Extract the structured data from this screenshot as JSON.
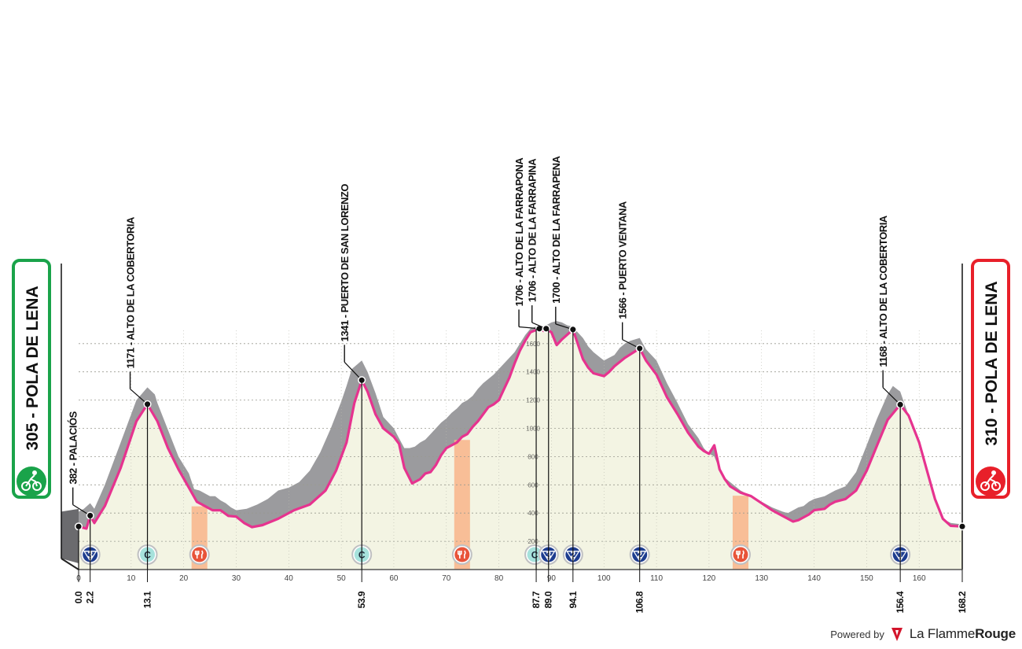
{
  "start_label": "305 - POLA DE LENA",
  "finish_label": "310 - POLA DE LENA",
  "colors": {
    "start": "#1aa34a",
    "finish": "#e8202a",
    "profile_line": "#e6338f",
    "profile_fill": "#f3f4e3",
    "relief": "#9b9b9e",
    "feed": "#f8b48a",
    "marker_border": "#bfc0c2",
    "dark_marker": "#1e3d8f",
    "teal_marker": "#a6e2dc",
    "feed_marker": "#e8543a"
  },
  "footer": {
    "powered": "Powered by",
    "brand_regular": "La Flamme",
    "brand_bold": "Rouge",
    "logo_icon": "flame-logo-icon"
  },
  "chart_data": {
    "type": "area",
    "xlabel": "",
    "ylabel": "",
    "xlim": [
      0,
      168.2
    ],
    "ylim": [
      0,
      1800
    ],
    "x_ticks": [
      0,
      10,
      20,
      30,
      40,
      50,
      60,
      70,
      80,
      90,
      100,
      110,
      120,
      130,
      140,
      150,
      160
    ],
    "y_ticks": [
      200,
      400,
      600,
      800,
      1000,
      1200,
      1400,
      1600
    ],
    "y_tick_labels_from_km": 86.5,
    "profile": [
      [
        0,
        305
      ],
      [
        1.5,
        290
      ],
      [
        2.2,
        382
      ],
      [
        3,
        330
      ],
      [
        5,
        450
      ],
      [
        8,
        720
      ],
      [
        11,
        1050
      ],
      [
        13.1,
        1171
      ],
      [
        15,
        1050
      ],
      [
        17,
        860
      ],
      [
        19,
        710
      ],
      [
        21,
        580
      ],
      [
        22.5,
        480
      ],
      [
        24,
        450
      ],
      [
        25.5,
        420
      ],
      [
        27,
        420
      ],
      [
        28.5,
        380
      ],
      [
        30,
        375
      ],
      [
        31.5,
        330
      ],
      [
        33,
        300
      ],
      [
        35,
        315
      ],
      [
        38,
        360
      ],
      [
        41,
        420
      ],
      [
        44,
        460
      ],
      [
        47,
        560
      ],
      [
        49,
        700
      ],
      [
        51,
        900
      ],
      [
        52.5,
        1180
      ],
      [
        53.9,
        1341
      ],
      [
        55,
        1260
      ],
      [
        56.5,
        1100
      ],
      [
        58,
        1000
      ],
      [
        60,
        940
      ],
      [
        61,
        890
      ],
      [
        62,
        720
      ],
      [
        63.5,
        610
      ],
      [
        65,
        640
      ],
      [
        66,
        680
      ],
      [
        67,
        690
      ],
      [
        68,
        740
      ],
      [
        69,
        810
      ],
      [
        70,
        860
      ],
      [
        71,
        880
      ],
      [
        72,
        900
      ],
      [
        73,
        940
      ],
      [
        74,
        960
      ],
      [
        75,
        1010
      ],
      [
        76,
        1050
      ],
      [
        77,
        1100
      ],
      [
        78,
        1150
      ],
      [
        79,
        1170
      ],
      [
        80,
        1200
      ],
      [
        81,
        1280
      ],
      [
        82,
        1360
      ],
      [
        83,
        1460
      ],
      [
        84,
        1550
      ],
      [
        85,
        1620
      ],
      [
        86,
        1680
      ],
      [
        87.7,
        1706
      ],
      [
        88.5,
        1690
      ],
      [
        89,
        1706
      ],
      [
        90,
        1680
      ],
      [
        91,
        1590
      ],
      [
        92,
        1630
      ],
      [
        94.1,
        1700
      ],
      [
        95,
        1600
      ],
      [
        96,
        1490
      ],
      [
        97,
        1430
      ],
      [
        98,
        1390
      ],
      [
        99,
        1380
      ],
      [
        100,
        1370
      ],
      [
        101,
        1400
      ],
      [
        102,
        1440
      ],
      [
        103,
        1470
      ],
      [
        104,
        1500
      ],
      [
        106.8,
        1566
      ],
      [
        108,
        1480
      ],
      [
        110,
        1380
      ],
      [
        112,
        1220
      ],
      [
        114,
        1100
      ],
      [
        116,
        970
      ],
      [
        118,
        870
      ],
      [
        119,
        840
      ],
      [
        120,
        820
      ],
      [
        121,
        880
      ],
      [
        122,
        710
      ],
      [
        123,
        640
      ],
      [
        124,
        590
      ],
      [
        126,
        545
      ],
      [
        128,
        520
      ],
      [
        130,
        470
      ],
      [
        132,
        420
      ],
      [
        134,
        380
      ],
      [
        135,
        360
      ],
      [
        136,
        340
      ],
      [
        137,
        350
      ],
      [
        138,
        370
      ],
      [
        139,
        390
      ],
      [
        140,
        420
      ],
      [
        142,
        430
      ],
      [
        143,
        460
      ],
      [
        144,
        480
      ],
      [
        146,
        500
      ],
      [
        148,
        560
      ],
      [
        150,
        700
      ],
      [
        152,
        880
      ],
      [
        154,
        1060
      ],
      [
        156.4,
        1168
      ],
      [
        158,
        1090
      ],
      [
        160,
        900
      ],
      [
        161.5,
        700
      ],
      [
        163,
        500
      ],
      [
        164.5,
        360
      ],
      [
        166,
        310
      ],
      [
        168.2,
        305
      ]
    ],
    "relief": [
      [
        0,
        410
      ],
      [
        1,
        430
      ],
      [
        2.2,
        470
      ],
      [
        3,
        430
      ],
      [
        5,
        600
      ],
      [
        8,
        900
      ],
      [
        11,
        1200
      ],
      [
        13.1,
        1290
      ],
      [
        14.5,
        1240
      ],
      [
        15,
        1180
      ],
      [
        17,
        990
      ],
      [
        19,
        800
      ],
      [
        21,
        680
      ],
      [
        22,
        570
      ],
      [
        23,
        560
      ],
      [
        24,
        540
      ],
      [
        25,
        520
      ],
      [
        26,
        520
      ],
      [
        27,
        490
      ],
      [
        28,
        470
      ],
      [
        29,
        440
      ],
      [
        30,
        420
      ],
      [
        32,
        430
      ],
      [
        34,
        460
      ],
      [
        36,
        500
      ],
      [
        38,
        560
      ],
      [
        40,
        580
      ],
      [
        42,
        620
      ],
      [
        44,
        700
      ],
      [
        46,
        830
      ],
      [
        48,
        1000
      ],
      [
        50,
        1190
      ],
      [
        51,
        1300
      ],
      [
        52,
        1420
      ],
      [
        53.9,
        1480
      ],
      [
        55,
        1400
      ],
      [
        56.5,
        1250
      ],
      [
        58,
        1080
      ],
      [
        60,
        1000
      ],
      [
        61,
        930
      ],
      [
        62,
        860
      ],
      [
        63,
        860
      ],
      [
        64,
        870
      ],
      [
        65,
        900
      ],
      [
        66,
        920
      ],
      [
        67,
        960
      ],
      [
        68,
        1000
      ],
      [
        69,
        1040
      ],
      [
        70,
        1070
      ],
      [
        71,
        1110
      ],
      [
        72,
        1140
      ],
      [
        73,
        1180
      ],
      [
        74,
        1200
      ],
      [
        75,
        1230
      ],
      [
        76,
        1280
      ],
      [
        77,
        1320
      ],
      [
        78,
        1350
      ],
      [
        79,
        1380
      ],
      [
        80,
        1420
      ],
      [
        81,
        1460
      ],
      [
        82,
        1500
      ],
      [
        83,
        1540
      ],
      [
        84,
        1600
      ],
      [
        85,
        1660
      ],
      [
        86,
        1706
      ],
      [
        87.7,
        1730
      ],
      [
        88.5,
        1720
      ],
      [
        89,
        1730
      ],
      [
        90,
        1750
      ],
      [
        91,
        1760
      ],
      [
        92,
        1750
      ],
      [
        93,
        1730
      ],
      [
        94.1,
        1720
      ],
      [
        95,
        1680
      ],
      [
        96,
        1640
      ],
      [
        97,
        1580
      ],
      [
        98,
        1540
      ],
      [
        99,
        1510
      ],
      [
        100,
        1480
      ],
      [
        101,
        1500
      ],
      [
        102,
        1520
      ],
      [
        103,
        1570
      ],
      [
        104,
        1600
      ],
      [
        105,
        1620
      ],
      [
        106.8,
        1640
      ],
      [
        108,
        1560
      ],
      [
        110,
        1480
      ],
      [
        112,
        1320
      ],
      [
        114,
        1180
      ],
      [
        116,
        1030
      ],
      [
        118,
        930
      ],
      [
        119,
        860
      ],
      [
        120,
        820
      ],
      [
        121,
        800
      ],
      [
        122,
        710
      ],
      [
        123,
        650
      ],
      [
        124,
        620
      ],
      [
        126,
        560
      ],
      [
        128,
        520
      ],
      [
        130,
        480
      ],
      [
        132,
        440
      ],
      [
        134,
        410
      ],
      [
        135,
        400
      ],
      [
        136,
        420
      ],
      [
        137,
        440
      ],
      [
        138,
        450
      ],
      [
        139,
        480
      ],
      [
        140,
        500
      ],
      [
        142,
        520
      ],
      [
        143,
        540
      ],
      [
        144,
        560
      ],
      [
        146,
        590
      ],
      [
        148,
        690
      ],
      [
        150,
        880
      ],
      [
        152,
        1070
      ],
      [
        154,
        1240
      ],
      [
        155,
        1300
      ],
      [
        156.4,
        1260
      ],
      [
        158,
        1090
      ],
      [
        160,
        900
      ],
      [
        161.5,
        700
      ],
      [
        163,
        500
      ],
      [
        164.5,
        360
      ],
      [
        166,
        330
      ],
      [
        168.2,
        320
      ]
    ],
    "feed_zones": [
      [
        21.5,
        24.5
      ],
      [
        71.5,
        74.5
      ],
      [
        124.5,
        127.5
      ]
    ],
    "climbs": [
      {
        "km": 2.2,
        "alt": 382,
        "label": "382 - PALACIÓS"
      },
      {
        "km": 13.1,
        "alt": 1171,
        "label": "1171 - ALTO DE LA COBERTORIA"
      },
      {
        "km": 53.9,
        "alt": 1341,
        "label": "1341 - PUERTO DE SAN LORENZO"
      },
      {
        "km": 87.7,
        "alt": 1706,
        "label": "1706 - ALTO DE LA FARRAPONA"
      },
      {
        "km": 89.0,
        "alt": 1706,
        "label": "1706 - ALTO DE LA FARRAPINA"
      },
      {
        "km": 94.1,
        "alt": 1700,
        "label": "1700 - ALTO DE LA FARRAPENA"
      },
      {
        "km": 106.8,
        "alt": 1566,
        "label": "1566 - PUERTO VENTANA"
      },
      {
        "km": 156.4,
        "alt": 1168,
        "label": "1168 - ALTO DE LA COBERTORIA"
      }
    ],
    "km_labels": [
      "0.0",
      "2.2",
      "13.1",
      "53.9",
      "87.7",
      "89.0",
      "94.1",
      "106.8",
      "156.4",
      "168.2"
    ],
    "markers": [
      {
        "km": 2.2,
        "kind": "category",
        "text": "3"
      },
      {
        "km": 13.1,
        "kind": "cat-c",
        "text": "C"
      },
      {
        "km": 23.0,
        "kind": "feed",
        "text": ""
      },
      {
        "km": 53.9,
        "kind": "cat-c",
        "text": "C"
      },
      {
        "km": 73.0,
        "kind": "feed",
        "text": ""
      },
      {
        "km": 87.7,
        "kind": "cat-c",
        "text": "C"
      },
      {
        "km": 89.0,
        "kind": "category",
        "text": "3"
      },
      {
        "km": 94.1,
        "kind": "category",
        "text": "2"
      },
      {
        "km": 106.8,
        "kind": "category",
        "text": "2"
      },
      {
        "km": 126.0,
        "kind": "feed",
        "text": ""
      },
      {
        "km": 156.4,
        "kind": "category",
        "text": "1"
      }
    ]
  }
}
